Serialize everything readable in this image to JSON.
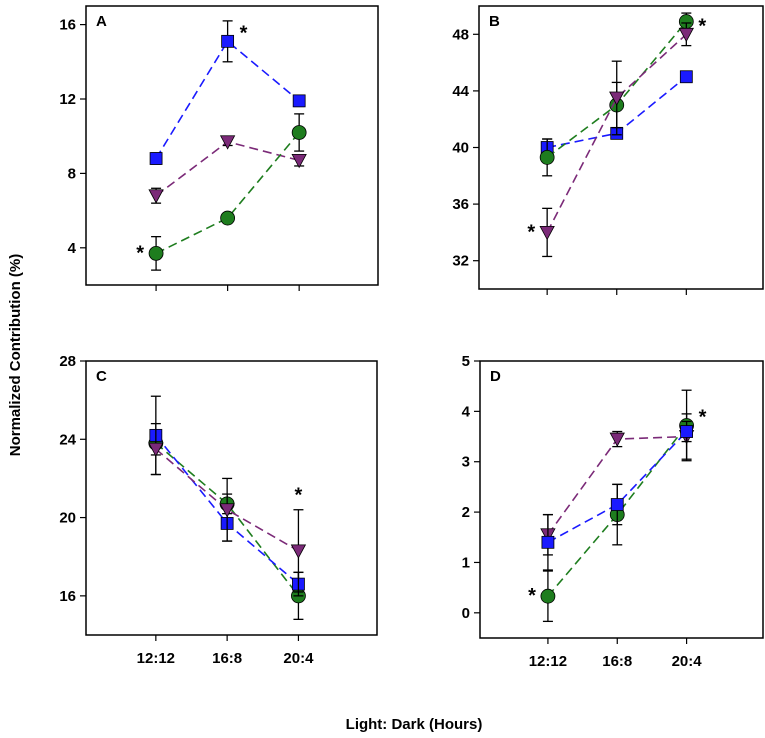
{
  "figure": {
    "ylabel": "Normalized Contribution (%)",
    "xlabel": "Light: Dark (Hours)"
  },
  "chart_data": [
    {
      "panel": "A",
      "type": "line",
      "categories": [
        "12:12",
        "16:8",
        "20:4"
      ],
      "ylim": [
        2,
        17
      ],
      "yticks": [
        4,
        8,
        12,
        16
      ],
      "show_xticklabels": false,
      "series": [
        {
          "name": "square",
          "marker": "square",
          "color": "#1a1aff",
          "values": [
            8.8,
            15.1,
            11.9
          ],
          "errors": [
            0.3,
            1.1,
            0.3
          ]
        },
        {
          "name": "triangle",
          "marker": "triangle",
          "color": "#7b2a78",
          "values": [
            6.8,
            9.7,
            8.7
          ],
          "errors": [
            0.4,
            0.2,
            0.3
          ]
        },
        {
          "name": "circle",
          "marker": "circle",
          "color": "#1e7d1e",
          "values": [
            3.7,
            5.6,
            10.2
          ],
          "errors": [
            0.9,
            0.2,
            1.0
          ]
        }
      ],
      "annotations": [
        {
          "text": "*",
          "series": "circle",
          "index": 0,
          "side": "left"
        },
        {
          "text": "*",
          "series": "square",
          "index": 1,
          "side": "right"
        }
      ]
    },
    {
      "panel": "B",
      "type": "line",
      "categories": [
        "12:12",
        "16:8",
        "20:4"
      ],
      "ylim": [
        30,
        50
      ],
      "yticks": [
        32,
        36,
        40,
        44,
        48
      ],
      "show_xticklabels": false,
      "series": [
        {
          "name": "square",
          "marker": "square",
          "color": "#1a1aff",
          "values": [
            40.0,
            41.0,
            45.0
          ],
          "errors": [
            0.6,
            0.3,
            0.2
          ]
        },
        {
          "name": "circle",
          "marker": "circle",
          "color": "#1e7d1e",
          "values": [
            39.3,
            43.0,
            48.9
          ],
          "errors": [
            1.3,
            1.6,
            0.6
          ]
        },
        {
          "name": "triangle",
          "marker": "triangle",
          "color": "#7b2a78",
          "values": [
            34.0,
            43.5,
            48.0
          ],
          "errors": [
            1.7,
            2.6,
            0.8
          ]
        }
      ],
      "annotations": [
        {
          "text": "*",
          "series": "triangle",
          "index": 0,
          "side": "left"
        },
        {
          "text": "*",
          "series": "triangle",
          "index": 2,
          "side": "right"
        }
      ]
    },
    {
      "panel": "C",
      "type": "line",
      "categories": [
        "12:12",
        "16:8",
        "20:4"
      ],
      "ylim": [
        14,
        28
      ],
      "yticks": [
        16,
        20,
        24,
        28
      ],
      "show_xticklabels": true,
      "series": [
        {
          "name": "circle",
          "marker": "circle",
          "color": "#1e7d1e",
          "values": [
            23.8,
            20.7,
            16.0
          ],
          "errors": [
            0.6,
            0.5,
            1.2
          ]
        },
        {
          "name": "square",
          "marker": "square",
          "color": "#1a1aff",
          "values": [
            24.2,
            19.7,
            16.6
          ],
          "errors": [
            2.0,
            0.9,
            0.6
          ]
        },
        {
          "name": "triangle",
          "marker": "triangle",
          "color": "#7b2a78",
          "values": [
            23.5,
            20.4,
            18.3
          ],
          "errors": [
            1.3,
            1.6,
            2.1
          ]
        }
      ],
      "annotations": [
        {
          "text": "*",
          "series": "triangle",
          "index": 2,
          "side": "top"
        }
      ]
    },
    {
      "panel": "D",
      "type": "line",
      "categories": [
        "12:12",
        "16:8",
        "20:4"
      ],
      "ylim": [
        -0.5,
        5
      ],
      "yticks": [
        0,
        1,
        2,
        3,
        4,
        5
      ],
      "show_xticklabels": true,
      "series": [
        {
          "name": "triangle",
          "marker": "triangle",
          "color": "#7b2a78",
          "values": [
            1.55,
            3.45,
            3.5
          ],
          "errors": [
            0.4,
            0.15,
            0.45
          ]
        },
        {
          "name": "circle",
          "marker": "circle",
          "color": "#1e7d1e",
          "values": [
            0.33,
            1.95,
            3.72
          ],
          "errors": [
            0.5,
            0.6,
            0.7
          ]
        },
        {
          "name": "square",
          "marker": "square",
          "color": "#1a1aff",
          "values": [
            1.4,
            2.15,
            3.6
          ],
          "errors": [
            0.55,
            0.4,
            0.2
          ]
        }
      ],
      "annotations": [
        {
          "text": "*",
          "series": "circle",
          "index": 0,
          "side": "left"
        },
        {
          "text": "*",
          "series": "circle",
          "index": 2,
          "side": "right"
        }
      ]
    }
  ]
}
